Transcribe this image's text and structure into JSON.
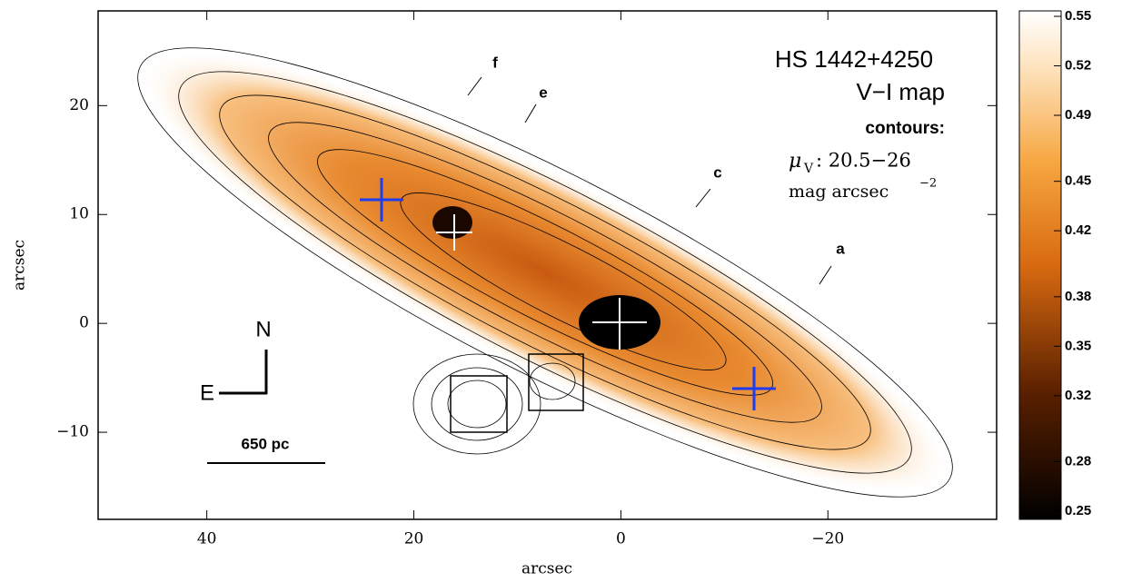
{
  "chart_data": {
    "type": "image",
    "xlabel": "arcsec",
    "ylabel": "arcsec",
    "xlim": [
      50.5,
      -36.3
    ],
    "ylim": [
      -18,
      28.7
    ],
    "xticks": [
      40,
      20,
      0,
      {
        "value": -20,
        "label": "−20"
      }
    ],
    "yticks": [
      {
        "value": -10,
        "label": "−10"
      },
      0,
      10,
      20
    ],
    "colorbar": {
      "lim": [
        0.25,
        0.55
      ],
      "ticks": [
        0.25,
        0.28,
        0.32,
        0.35,
        0.38,
        0.42,
        0.45,
        0.49,
        0.52,
        0.55
      ]
    },
    "annotations": {
      "title": "HS 1442+4250",
      "subtitle": "V−I map",
      "contours": "contours:",
      "mu": "μ",
      "mu_sub": "V",
      "mu_range": ": 20.5−26",
      "units": "mag arcsec",
      "units_exp": "−2",
      "f": "f",
      "e": "e",
      "c": "c",
      "a": "a",
      "north": "N",
      "east": "E",
      "scale": "650 pc"
    }
  }
}
